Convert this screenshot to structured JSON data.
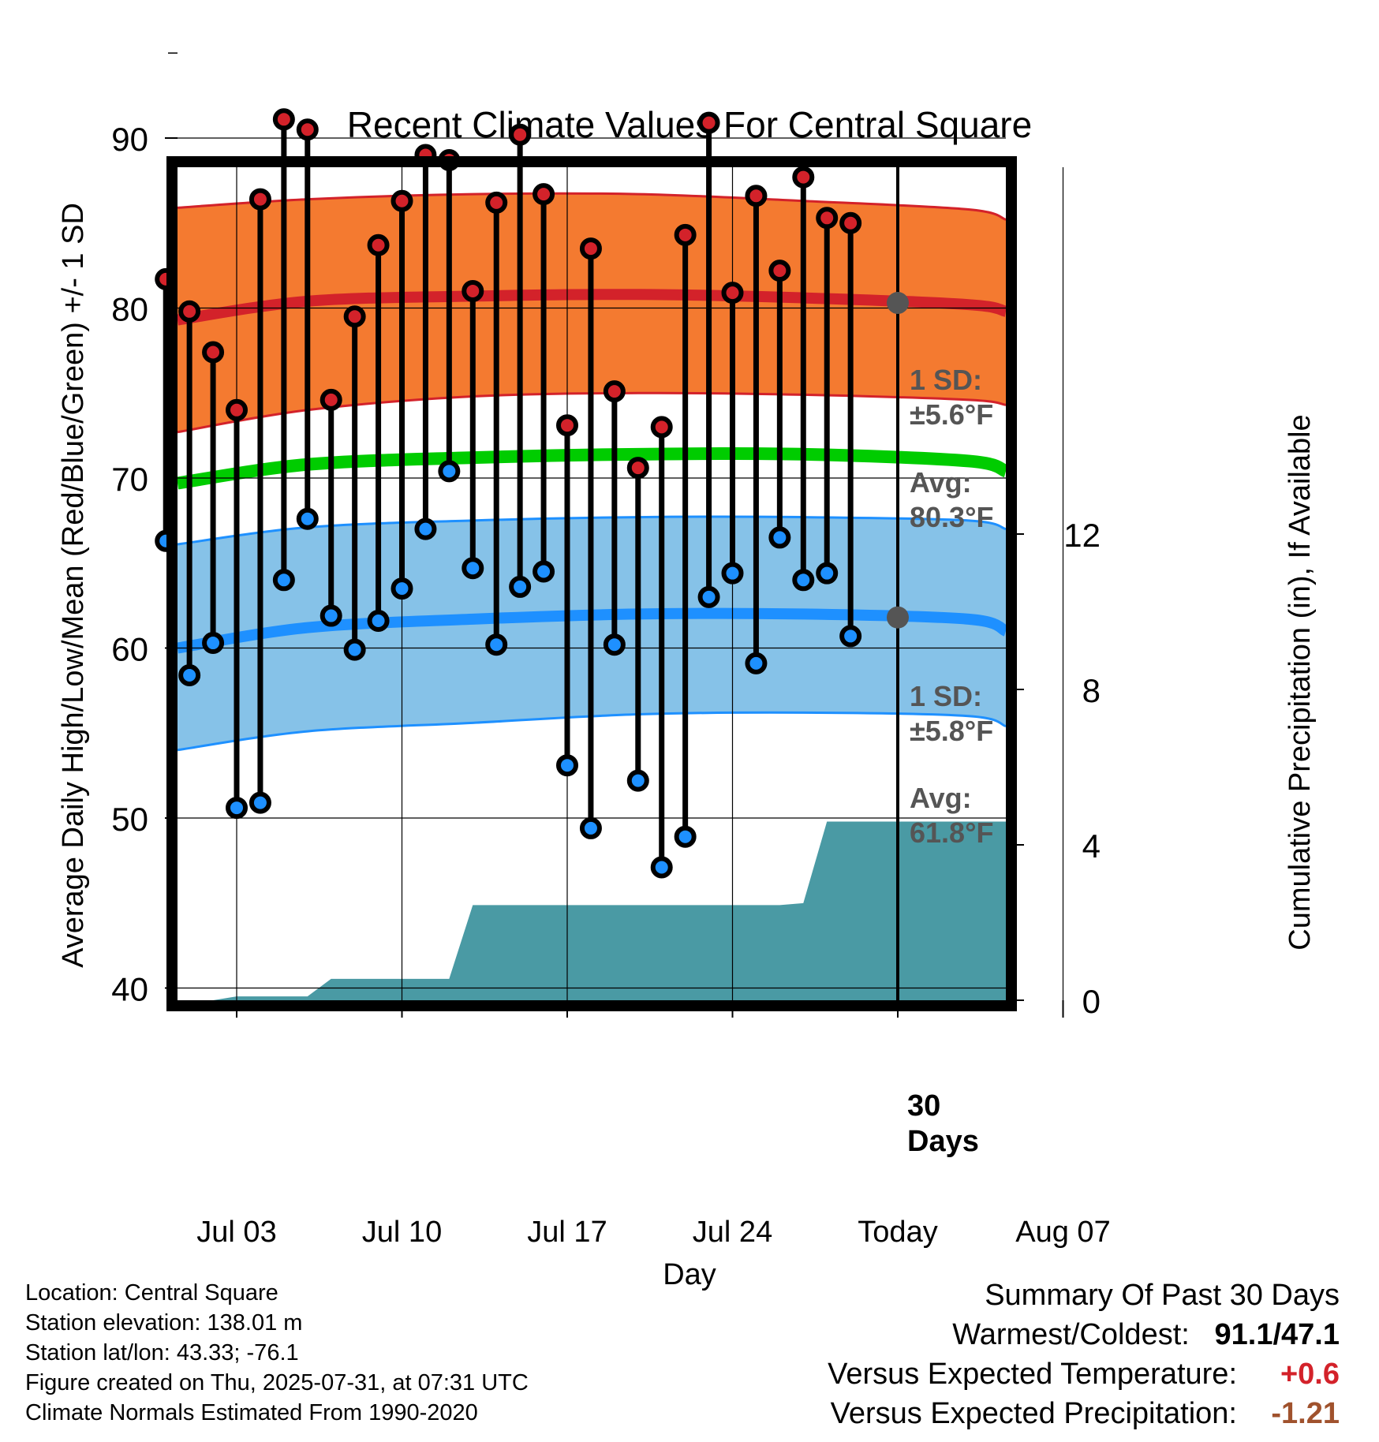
{
  "chart_data": {
    "type": "line",
    "title": "Recent Climate Values For Central Square",
    "xlabel": "Day",
    "ylabel_left": "Average Daily High/Low/Mean (Red/Blue/Green) +/- 1 SD",
    "ylabel_right": "Cumulative Precipitation (in), If Available",
    "x_ticks": [
      "Jul 03",
      "Jul 10",
      "Jul 17",
      "Jul 24",
      "Today",
      "Aug 07"
    ],
    "y_left_ticks": [
      40,
      50,
      60,
      70,
      80,
      90
    ],
    "y_left_range": [
      39.3,
      96.0
    ],
    "y_right_ticks": [
      0,
      4,
      8,
      12
    ],
    "y_right_range": [
      0,
      26.8
    ],
    "x_range_days": [
      "2025-06-29",
      "2025-08-10"
    ],
    "today": "2025-07-31",
    "daily_high": [
      81.7,
      79.8,
      77.4,
      74.0,
      86.4,
      91.1,
      90.5,
      74.6,
      79.5,
      83.7,
      86.3,
      89.0,
      88.7,
      81.0,
      86.2,
      90.2,
      86.7,
      73.1,
      83.5,
      75.1,
      70.6,
      73.0,
      84.3,
      90.9,
      80.9,
      86.6,
      82.2,
      87.7,
      85.3,
      85.0
    ],
    "daily_low": [
      66.3,
      58.4,
      60.3,
      50.6,
      50.9,
      64.0,
      67.6,
      61.9,
      59.9,
      61.6,
      63.5,
      67.0,
      70.4,
      64.7,
      60.2,
      63.6,
      64.5,
      53.1,
      49.4,
      60.2,
      52.2,
      47.1,
      48.9,
      63.0,
      64.4,
      59.1,
      66.5,
      64.0,
      64.4,
      60.7
    ],
    "high_dates": [
      "Jun 30",
      "Jul 01",
      "Jul 02",
      "Jul 03",
      "Jul 04",
      "Jul 05",
      "Jul 06",
      "Jul 07",
      "Jul 08",
      "Jul 09",
      "Jul 10",
      "Jul 11",
      "Jul 12",
      "Jul 13",
      "Jul 14",
      "Jul 15",
      "Jul 16",
      "Jul 17",
      "Jul 18",
      "Jul 19",
      "Jul 20",
      "Jul 21",
      "Jul 22",
      "Jul 23",
      "Jul 24",
      "Jul 25",
      "Jul 26",
      "Jul 27",
      "Jul 28",
      "Jul 29"
    ],
    "normal_high_avg": [
      79.3,
      80.4,
      80.7,
      80.8,
      80.6,
      80.2,
      79.8
    ],
    "normal_high_upper": [
      85.9,
      86.4,
      86.7,
      86.7,
      86.3,
      85.8,
      85.2
    ],
    "normal_high_lower": [
      72.7,
      74.0,
      74.8,
      75.0,
      74.9,
      74.6,
      74.3
    ],
    "normal_low_avg": [
      60.0,
      61.2,
      61.7,
      62.0,
      62.0,
      61.7,
      61.0
    ],
    "normal_low_upper": [
      66.1,
      67.1,
      67.5,
      67.7,
      67.7,
      67.5,
      67.0
    ],
    "normal_low_lower": [
      54.0,
      55.1,
      55.6,
      56.1,
      56.2,
      56.0,
      55.4
    ],
    "normal_mean": [
      69.7,
      70.8,
      71.2,
      71.4,
      71.4,
      71.0,
      70.4
    ],
    "normal_dates": [
      "Jun 29",
      "Jul 06",
      "Jul 13",
      "Jul 20",
      "Jul 27",
      "Aug 03",
      "Aug 10"
    ],
    "precip_cum_steps": [
      {
        "date": "Jul 02",
        "value": 0.1
      },
      {
        "date": "Jul 06",
        "value": 0.55
      },
      {
        "date": "Jul 12",
        "value": 2.45
      },
      {
        "date": "Jul 26",
        "value": 2.5
      },
      {
        "date": "Jul 27",
        "value": 4.6
      }
    ],
    "annotations": {
      "high_sd": [
        "1 SD:",
        "±5.6°F"
      ],
      "high_avg": [
        "Avg:",
        "80.3°F"
      ],
      "low_sd": [
        "1 SD:",
        "±5.8°F"
      ],
      "low_avg": [
        "Avg:",
        "61.8°F"
      ],
      "window": [
        "30",
        "Days"
      ]
    },
    "today_high_avg": 80.3,
    "today_low_avg": 61.8,
    "colors": {
      "high_band": "#f47a30",
      "high_line": "#d3222a",
      "low_band": "#86c2e8",
      "low_line": "#1e90ff",
      "mean_line": "#00cc00",
      "precip": "#4a9aa4",
      "high_marker": "#d3222a",
      "low_marker": "#1e90ff",
      "annotation": "#555555"
    },
    "grid": true
  },
  "info": {
    "location": "Location: Central Square",
    "elevation": "Station elevation: 138.01 m",
    "latlon": "Station lat/lon: 43.33; -76.1",
    "created": "Figure created on Thu, 2025-07-31, at 07:31 UTC",
    "normals": "Climate Normals Estimated From 1990-2020"
  },
  "summary": {
    "title": "Summary Of Past 30 Days",
    "warm_cold_label": "Warmest/Coldest:",
    "warm_cold_value": "91.1/47.1",
    "temp_label": "Versus Expected Temperature:",
    "temp_value": "+0.6",
    "temp_color": "#d3222a",
    "precip_label": "Versus Expected Precipitation:",
    "precip_value": "-1.21",
    "precip_color": "#a0522d"
  }
}
